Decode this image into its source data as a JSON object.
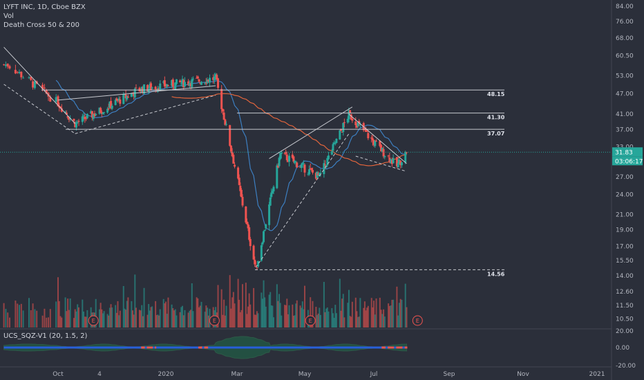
{
  "legend": {
    "symbol_line": "LYFT INC, 1D, Cboe BZX",
    "vol_label": "Vol",
    "strategy_label": "Death Cross 50 & 200"
  },
  "indicator": {
    "label": "UCS_SQZ-V1 (20, 1.5, 2)"
  },
  "colors": {
    "background": "#2b2f3a",
    "up": "#26a69a",
    "down": "#ef5350",
    "ma50": "#3d7fc1",
    "ma200": "#e0643c",
    "price_line": "#26a69a",
    "level_line": "#c7c9cf",
    "earnings": "#ef5350"
  },
  "price_label": {
    "value": "31.83",
    "countdown": "03:06:17"
  },
  "earnings_markers": [
    "E",
    "E",
    "E",
    "E"
  ],
  "chart_data": {
    "type": "candlestick",
    "title": "LYFT INC, 1D, Cboe BZX",
    "y_axis": {
      "scale": "log",
      "ticks": [
        "84.00",
        "76.00",
        "68.00",
        "60.50",
        "53.00",
        "47.00",
        "41.00",
        "37.00",
        "33.00",
        "27.00",
        "24.00",
        "21.00",
        "19.00",
        "17.00",
        "15.50",
        "14.00",
        "12.60",
        "11.50",
        "10.50"
      ],
      "ylim": [
        10.1,
        86.0
      ]
    },
    "x_axis": {
      "ticks": [
        "Oct",
        "4",
        "2020",
        "Mar",
        "May",
        "Jul",
        "Sep",
        "Nov",
        "2021"
      ]
    },
    "levels": [
      {
        "label": "48.15",
        "value": 48.15
      },
      {
        "label": "41.30",
        "value": 41.3
      },
      {
        "label": "37.07",
        "value": 37.07
      },
      {
        "label": "14.56",
        "value": 14.56
      }
    ],
    "key_prices": [
      {
        "date": "2019-09-05",
        "price": 57.0
      },
      {
        "date": "2019-10-15",
        "price": 38.5
      },
      {
        "date": "2019-12-10",
        "price": 48.5
      },
      {
        "date": "2020-02-12",
        "price": 52.0
      },
      {
        "date": "2020-03-18",
        "price": 14.56
      },
      {
        "date": "2020-04-09",
        "price": 31.5
      },
      {
        "date": "2020-05-14",
        "price": 27.0
      },
      {
        "date": "2020-06-09",
        "price": 41.0
      },
      {
        "date": "2020-07-20",
        "price": 29.0
      },
      {
        "date": "2020-07-28",
        "price": 31.83
      }
    ],
    "indicator_axis": {
      "ticks": [
        "20.00",
        "0.00",
        "-20.00"
      ]
    }
  }
}
